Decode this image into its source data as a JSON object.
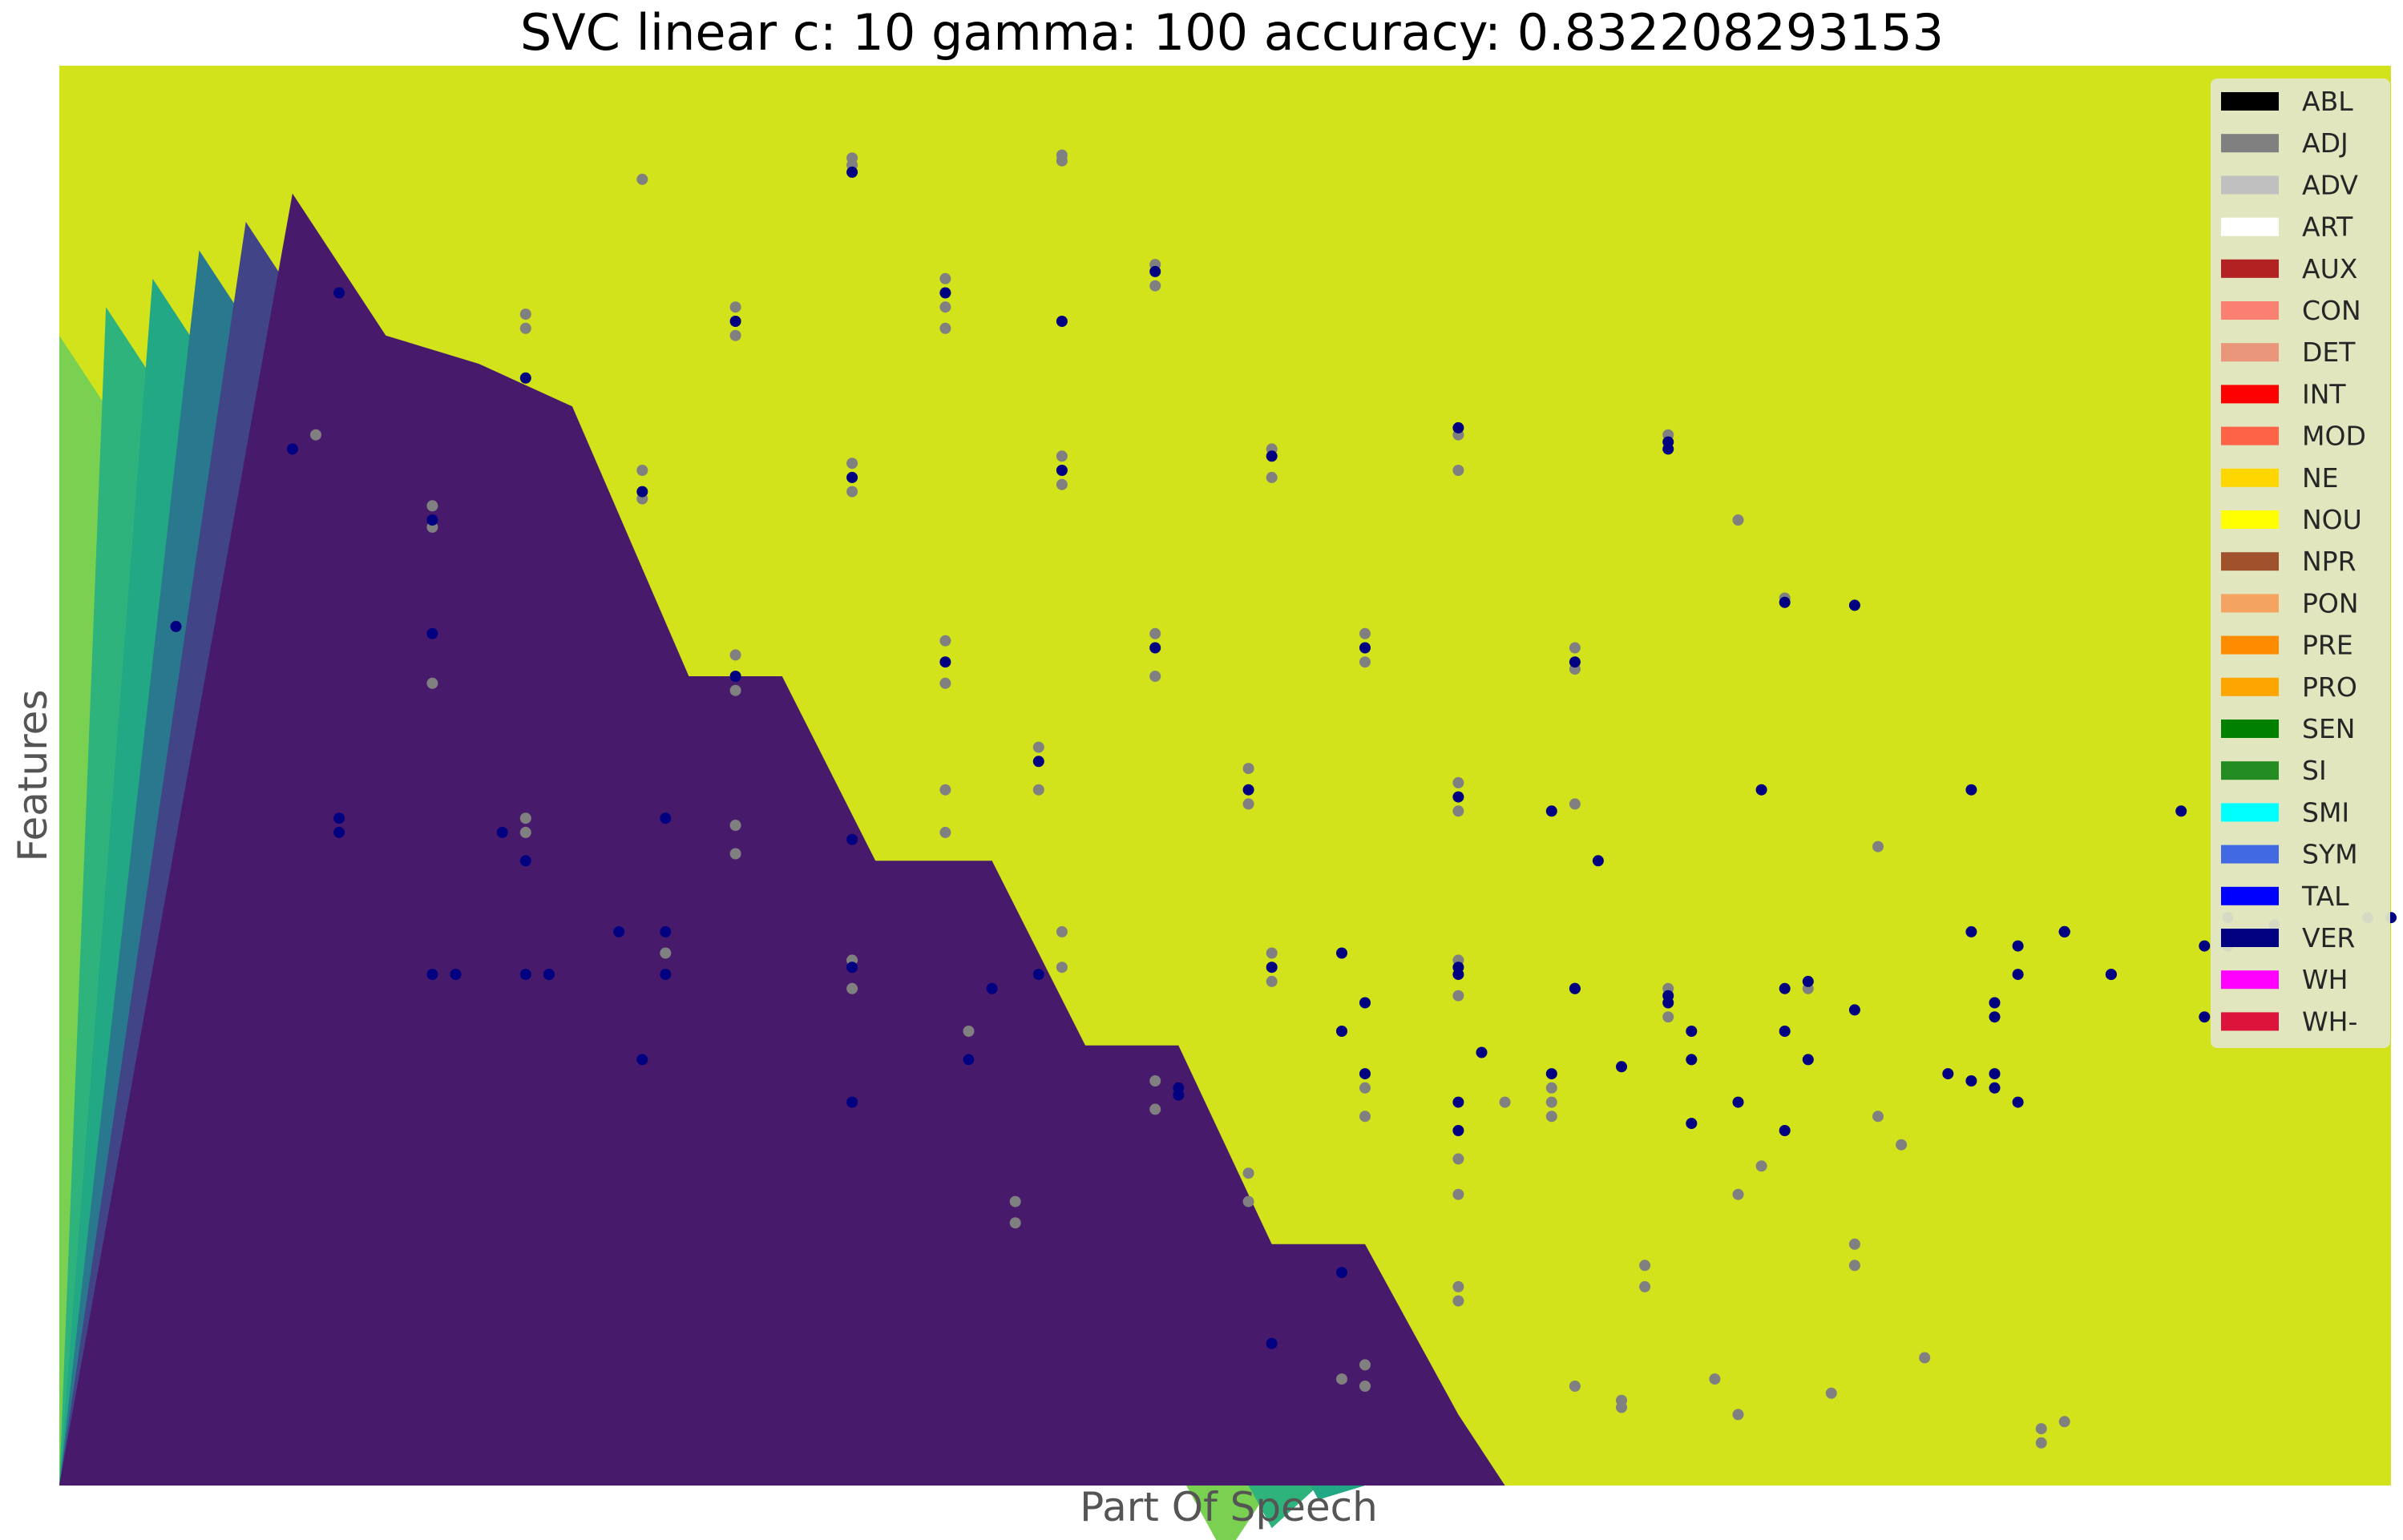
{
  "chart_data": {
    "type": "scatter",
    "title": "SVC linear c: 10 gamma: 100 accuracy: 0.832208293153",
    "xlabel": "Part Of Speech",
    "ylabel": "Features",
    "grid": false,
    "xticks": false,
    "yticks": false,
    "xlim": [
      0,
      1
    ],
    "ylim": [
      0,
      1
    ],
    "legend_position": "top-right",
    "background": {
      "type": "decision-contour",
      "colormap": "viridis",
      "levels": [
        {
          "color": "#481a6c"
        },
        {
          "color": "#414487"
        },
        {
          "color": "#2a788e"
        },
        {
          "color": "#22a884"
        },
        {
          "color": "#2eb37c"
        },
        {
          "color": "#7ad151"
        },
        {
          "color": "#d2e21b"
        }
      ],
      "boundary": [
        [
          0.0,
          0.81
        ],
        [
          0.04,
          0.71
        ],
        [
          0.08,
          0.69
        ],
        [
          0.12,
          0.66
        ],
        [
          0.17,
          0.47
        ],
        [
          0.21,
          0.47
        ],
        [
          0.25,
          0.34
        ],
        [
          0.3,
          0.34
        ],
        [
          0.34,
          0.21
        ],
        [
          0.38,
          0.21
        ],
        [
          0.42,
          0.07
        ],
        [
          0.46,
          0.07
        ],
        [
          0.5,
          -0.05
        ]
      ]
    },
    "legend": [
      {
        "label": "ABL",
        "color": "#000000"
      },
      {
        "label": "ADJ",
        "color": "#808080"
      },
      {
        "label": "ADV",
        "color": "#c0c0c0"
      },
      {
        "label": "ART",
        "color": "#ffffff"
      },
      {
        "label": "AUX",
        "color": "#b22222"
      },
      {
        "label": "CON",
        "color": "#fa8072"
      },
      {
        "label": "DET",
        "color": "#e9967a"
      },
      {
        "label": "INT",
        "color": "#ff0000"
      },
      {
        "label": "MOD",
        "color": "#ff6347"
      },
      {
        "label": "NE",
        "color": "#ffd700"
      },
      {
        "label": "NOU",
        "color": "#ffff00"
      },
      {
        "label": "NPR",
        "color": "#a0522d"
      },
      {
        "label": "PON",
        "color": "#f4a460"
      },
      {
        "label": "PRE",
        "color": "#ff8c00"
      },
      {
        "label": "PRO",
        "color": "#ffa500"
      },
      {
        "label": "SEN",
        "color": "#008000"
      },
      {
        "label": "SI",
        "color": "#228b22"
      },
      {
        "label": "SMI",
        "color": "#00ffff"
      },
      {
        "label": "SYM",
        "color": "#4169e1"
      },
      {
        "label": "TAL",
        "color": "#0000ff"
      },
      {
        "label": "VER",
        "color": "#000080"
      },
      {
        "label": "WH",
        "color": "#ff00ff"
      },
      {
        "label": "WH-",
        "color": "#dc143c"
      }
    ],
    "series": [
      {
        "color": "#808080",
        "points": [
          [
            0.25,
            0.92
          ],
          [
            0.34,
            0.935
          ],
          [
            0.34,
            0.93
          ],
          [
            0.43,
            0.937
          ],
          [
            0.43,
            0.933
          ],
          [
            0.2,
            0.825
          ],
          [
            0.2,
            0.815
          ],
          [
            0.29,
            0.83
          ],
          [
            0.29,
            0.81
          ],
          [
            0.38,
            0.85
          ],
          [
            0.38,
            0.83
          ],
          [
            0.38,
            0.815
          ],
          [
            0.47,
            0.86
          ],
          [
            0.47,
            0.845
          ],
          [
            0.11,
            0.74
          ],
          [
            0.16,
            0.69
          ],
          [
            0.16,
            0.675
          ],
          [
            0.25,
            0.715
          ],
          [
            0.25,
            0.695
          ],
          [
            0.34,
            0.72
          ],
          [
            0.34,
            0.7
          ],
          [
            0.43,
            0.725
          ],
          [
            0.43,
            0.705
          ],
          [
            0.52,
            0.73
          ],
          [
            0.52,
            0.71
          ],
          [
            0.6,
            0.74
          ],
          [
            0.6,
            0.715
          ],
          [
            0.69,
            0.74
          ],
          [
            0.72,
            0.68
          ],
          [
            0.29,
            0.585
          ],
          [
            0.29,
            0.56
          ],
          [
            0.38,
            0.595
          ],
          [
            0.38,
            0.565
          ],
          [
            0.47,
            0.6
          ],
          [
            0.47,
            0.57
          ],
          [
            0.56,
            0.6
          ],
          [
            0.56,
            0.58
          ],
          [
            0.65,
            0.59
          ],
          [
            0.65,
            0.575
          ],
          [
            0.74,
            0.625
          ],
          [
            0.16,
            0.565
          ],
          [
            0.2,
            0.47
          ],
          [
            0.2,
            0.46
          ],
          [
            0.29,
            0.465
          ],
          [
            0.29,
            0.445
          ],
          [
            0.38,
            0.49
          ],
          [
            0.38,
            0.46
          ],
          [
            0.42,
            0.52
          ],
          [
            0.42,
            0.49
          ],
          [
            0.51,
            0.505
          ],
          [
            0.51,
            0.48
          ],
          [
            0.6,
            0.495
          ],
          [
            0.6,
            0.475
          ],
          [
            0.65,
            0.48
          ],
          [
            0.78,
            0.45
          ],
          [
            0.26,
            0.375
          ],
          [
            0.34,
            0.37
          ],
          [
            0.34,
            0.35
          ],
          [
            0.43,
            0.39
          ],
          [
            0.43,
            0.365
          ],
          [
            0.52,
            0.375
          ],
          [
            0.52,
            0.355
          ],
          [
            0.6,
            0.37
          ],
          [
            0.6,
            0.345
          ],
          [
            0.69,
            0.35
          ],
          [
            0.69,
            0.33
          ],
          [
            0.75,
            0.35
          ],
          [
            0.74,
            0.32
          ],
          [
            0.39,
            0.32
          ],
          [
            0.39,
            0.3
          ],
          [
            0.47,
            0.285
          ],
          [
            0.47,
            0.265
          ],
          [
            0.56,
            0.28
          ],
          [
            0.56,
            0.26
          ],
          [
            0.62,
            0.27
          ],
          [
            0.64,
            0.28
          ],
          [
            0.64,
            0.26
          ],
          [
            0.78,
            0.26
          ],
          [
            0.79,
            0.24
          ],
          [
            0.41,
            0.2
          ],
          [
            0.41,
            0.185
          ],
          [
            0.51,
            0.22
          ],
          [
            0.51,
            0.2
          ],
          [
            0.6,
            0.23
          ],
          [
            0.6,
            0.205
          ],
          [
            0.64,
            0.27
          ],
          [
            0.73,
            0.225
          ],
          [
            0.72,
            0.205
          ],
          [
            0.6,
            0.14
          ],
          [
            0.6,
            0.13
          ],
          [
            0.68,
            0.155
          ],
          [
            0.68,
            0.14
          ],
          [
            0.77,
            0.17
          ],
          [
            0.77,
            0.155
          ],
          [
            0.56,
            0.085
          ],
          [
            0.56,
            0.07
          ],
          [
            0.65,
            0.07
          ],
          [
            0.67,
            0.055
          ],
          [
            0.67,
            0.06
          ],
          [
            0.71,
            0.075
          ],
          [
            0.72,
            0.05
          ],
          [
            0.76,
            0.065
          ],
          [
            0.8,
            0.09
          ],
          [
            0.85,
            0.04
          ],
          [
            0.85,
            0.03
          ],
          [
            0.86,
            0.045
          ],
          [
            0.55,
            0.075
          ]
        ]
      },
      {
        "color": "#000080",
        "points": [
          [
            0.12,
            0.84
          ],
          [
            0.34,
            0.925
          ],
          [
            0.1,
            0.73
          ],
          [
            0.43,
            0.82
          ],
          [
            0.16,
            0.68
          ],
          [
            0.25,
            0.7
          ],
          [
            0.34,
            0.71
          ],
          [
            0.43,
            0.715
          ],
          [
            0.52,
            0.725
          ],
          [
            0.6,
            0.745
          ],
          [
            0.69,
            0.735
          ],
          [
            0.69,
            0.73
          ],
          [
            0.05,
            0.605
          ],
          [
            0.2,
            0.78
          ],
          [
            0.29,
            0.82
          ],
          [
            0.38,
            0.84
          ],
          [
            0.47,
            0.855
          ],
          [
            0.16,
            0.6
          ],
          [
            0.29,
            0.57
          ],
          [
            0.38,
            0.58
          ],
          [
            0.47,
            0.59
          ],
          [
            0.56,
            0.59
          ],
          [
            0.65,
            0.58
          ],
          [
            0.74,
            0.622
          ],
          [
            0.77,
            0.62
          ],
          [
            0.12,
            0.47
          ],
          [
            0.12,
            0.46
          ],
          [
            0.2,
            0.44
          ],
          [
            0.26,
            0.47
          ],
          [
            0.34,
            0.455
          ],
          [
            0.42,
            0.51
          ],
          [
            0.51,
            0.49
          ],
          [
            0.6,
            0.485
          ],
          [
            0.64,
            0.475
          ],
          [
            0.73,
            0.49
          ],
          [
            0.82,
            0.49
          ],
          [
            0.91,
            0.475
          ],
          [
            0.19,
            0.46
          ],
          [
            0.26,
            0.39
          ],
          [
            0.34,
            0.365
          ],
          [
            0.6,
            0.36
          ],
          [
            0.69,
            0.345
          ],
          [
            0.75,
            0.355
          ],
          [
            0.16,
            0.36
          ],
          [
            0.25,
            0.3
          ],
          [
            0.34,
            0.27
          ],
          [
            0.39,
            0.3
          ],
          [
            0.56,
            0.29
          ],
          [
            0.64,
            0.29
          ],
          [
            0.74,
            0.32
          ],
          [
            0.82,
            0.285
          ],
          [
            0.83,
            0.29
          ],
          [
            0.86,
            0.39
          ],
          [
            0.17,
            0.36
          ],
          [
            0.21,
            0.36
          ],
          [
            0.24,
            0.39
          ],
          [
            0.52,
            0.365
          ],
          [
            0.55,
            0.375
          ],
          [
            0.6,
            0.365
          ],
          [
            0.65,
            0.35
          ],
          [
            0.69,
            0.34
          ],
          [
            0.74,
            0.35
          ],
          [
            0.82,
            0.39
          ],
          [
            0.86,
            0.39
          ],
          [
            0.88,
            0.36
          ],
          [
            0.95,
            0.395
          ],
          [
            0.17,
            0.36
          ],
          [
            0.21,
            0.36
          ],
          [
            0.26,
            0.36
          ],
          [
            0.6,
            0.27
          ],
          [
            0.74,
            0.25
          ],
          [
            0.77,
            0.335
          ],
          [
            0.83,
            0.28
          ],
          [
            0.84,
            0.27
          ],
          [
            0.84,
            0.38
          ],
          [
            0.86,
            0.39
          ],
          [
            0.88,
            0.36
          ],
          [
            0.21,
            0.36
          ],
          [
            0.42,
            0.36
          ],
          [
            0.48,
            0.28
          ],
          [
            0.56,
            0.34
          ],
          [
            0.65,
            0.35
          ],
          [
            0.67,
            0.295
          ],
          [
            0.7,
            0.255
          ],
          [
            0.72,
            0.27
          ],
          [
            0.75,
            0.3
          ],
          [
            0.83,
            0.33
          ],
          [
            0.83,
            0.34
          ],
          [
            0.86,
            0.39
          ],
          [
            0.92,
            0.33
          ],
          [
            0.92,
            0.38
          ],
          [
            1.0,
            0.4
          ],
          [
            0.99,
            0.4
          ],
          [
            0.2,
            0.36
          ],
          [
            0.4,
            0.35
          ],
          [
            0.48,
            0.275
          ],
          [
            0.52,
            0.1
          ],
          [
            0.55,
            0.15
          ],
          [
            0.55,
            0.32
          ],
          [
            0.6,
            0.25
          ],
          [
            0.61,
            0.305
          ],
          [
            0.66,
            0.44
          ],
          [
            0.7,
            0.3
          ],
          [
            0.7,
            0.32
          ],
          [
            0.81,
            0.29
          ],
          [
            0.84,
            0.36
          ],
          [
            0.93,
            0.38
          ],
          [
            0.93,
            0.4
          ]
        ]
      }
    ]
  }
}
